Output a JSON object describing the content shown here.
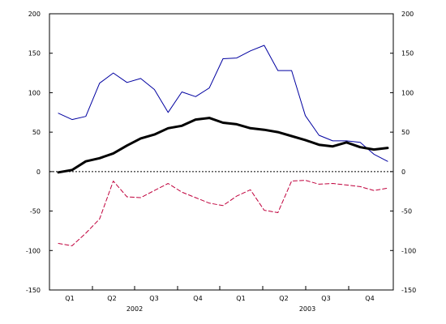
{
  "chart_data": {
    "type": "line",
    "title": "",
    "xlabel": "",
    "ylabel": "",
    "ylim": [
      -150,
      200
    ],
    "y_ticks": [
      200,
      150,
      100,
      50,
      0,
      -50,
      -100,
      -150
    ],
    "y_tick_labels": [
      "200",
      "150",
      "100",
      "50",
      "0",
      "-50",
      "-100",
      "-150"
    ],
    "right_axis_mirrors_left": true,
    "zero_reference_line": "dotted",
    "grid": false,
    "legend": "none",
    "quarter_labels": [
      "Q1",
      "Q2",
      "Q3",
      "Q4",
      "Q1",
      "Q2",
      "Q3",
      "Q4"
    ],
    "year_labels": [
      "2002",
      "2003"
    ],
    "x_start_index": 0,
    "x_end_index": 48,
    "series": [
      {
        "color": "#0000a0",
        "line_style": "solid",
        "line_width": "thin",
        "x": [
          0,
          2,
          4,
          6,
          8,
          10,
          12,
          14,
          16,
          18,
          20,
          22,
          24,
          26,
          28,
          30,
          32,
          34,
          36,
          38,
          40,
          42,
          44,
          46,
          48
        ],
        "values": [
          74,
          66,
          70,
          112,
          125,
          113,
          118,
          104,
          75,
          101,
          95,
          106,
          143,
          144,
          153,
          160,
          128,
          128,
          71,
          46,
          39,
          39,
          37,
          22,
          13
        ]
      },
      {
        "color": "#000000",
        "line_style": "solid",
        "line_width": "thick",
        "x": [
          0,
          2,
          4,
          6,
          8,
          10,
          12,
          14,
          16,
          18,
          20,
          22,
          24,
          26,
          28,
          30,
          32,
          34,
          36,
          38,
          40,
          42,
          44,
          46,
          48
        ],
        "values": [
          -1,
          2,
          13,
          17,
          23,
          33,
          42,
          47,
          55,
          58,
          66,
          68,
          62,
          60,
          55,
          53,
          50,
          45,
          40,
          34,
          32,
          37,
          31,
          28,
          30
        ]
      },
      {
        "color": "#c0003c",
        "line_style": "dashed",
        "line_width": "thin",
        "x": [
          0,
          2,
          4,
          6,
          8,
          10,
          12,
          14,
          16,
          18,
          20,
          22,
          24,
          26,
          28,
          30,
          32,
          34,
          36,
          38,
          40,
          42,
          44,
          46,
          48
        ],
        "values": [
          -91,
          -94,
          -78,
          -60,
          -12,
          -32,
          -33,
          -24,
          -15,
          -26,
          -33,
          -40,
          -43,
          -31,
          -23,
          -49,
          -52,
          -12,
          -11,
          -16,
          -15,
          -17,
          -19,
          -24,
          -21
        ]
      }
    ]
  }
}
